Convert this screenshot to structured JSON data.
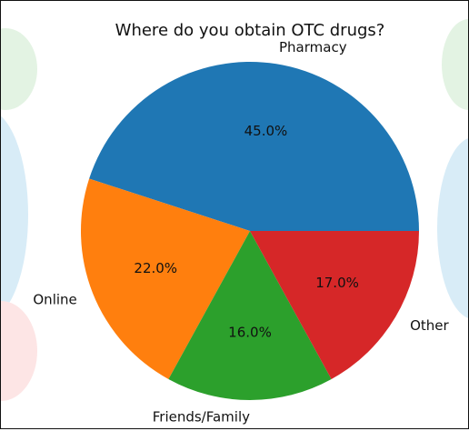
{
  "chart_data": {
    "type": "pie",
    "title": "Where do you obtain OTC drugs?",
    "categories": [
      "Pharmacy",
      "Online",
      "Friends/Family",
      "Other"
    ],
    "values": [
      45.0,
      22.0,
      16.0,
      17.0
    ],
    "value_labels": [
      "45.0%",
      "22.0%",
      "16.0%",
      "17.0%"
    ],
    "colors": [
      "#1f77b4",
      "#ff7f0e",
      "#2ca02c",
      "#d62728"
    ],
    "start_angle_deg": 0,
    "direction": "counterclockwise",
    "legend": "none"
  }
}
